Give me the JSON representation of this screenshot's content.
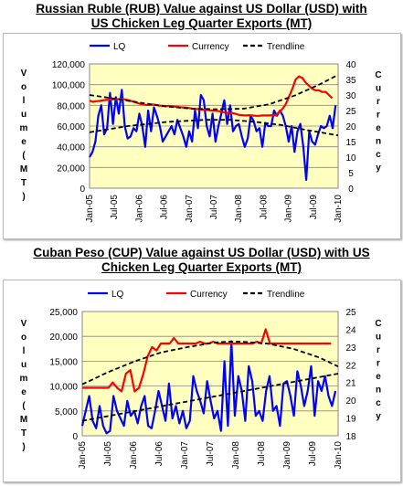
{
  "chart_data": [
    {
      "type": "line",
      "title_line1": "Russian Ruble (RUB) Value against US Dollar (USD) with",
      "title_line2": "US Chicken Leg Quarter Exports (MT)",
      "ylabel": "Volume (MT)",
      "y2label": "Currency",
      "ylim": [
        0,
        120000
      ],
      "y2lim": [
        0,
        40
      ],
      "yticks": [
        "0",
        "20,000",
        "40,000",
        "60,000",
        "80,000",
        "100,000",
        "120,000"
      ],
      "y2ticks": [
        "0",
        "5",
        "10",
        "15",
        "20",
        "25",
        "30",
        "35",
        "40"
      ],
      "xticks": [
        "Jan-05",
        "Jul-05",
        "Jan-06",
        "Jul-06",
        "Jan-07",
        "Jul-07",
        "Jan-08",
        "Jul-08",
        "Jan-09",
        "Jul-09",
        "Jan-10"
      ],
      "legend": [
        "LQ",
        "Currency",
        "Trendline"
      ],
      "colors": {
        "lq": "#0000ff",
        "currency": "#ff0000",
        "trend": "#000000",
        "plot_bg": "#ffffc0"
      },
      "series": [
        {
          "name": "LQ",
          "axis": "left",
          "values": [
            30000,
            35000,
            45000,
            70000,
            80000,
            52000,
            58000,
            92000,
            62000,
            88000,
            72000,
            95000,
            60000,
            48000,
            50000,
            58000,
            55000,
            72000,
            60000,
            40000,
            75000,
            55000,
            78000,
            70000,
            60000,
            45000,
            50000,
            55000,
            60000,
            52000,
            66000,
            58000,
            50000,
            40000,
            55000,
            45000,
            75000,
            58000,
            90000,
            85000,
            60000,
            50000,
            72000,
            45000,
            60000,
            72000,
            85000,
            62000,
            80000,
            55000,
            60000,
            62000,
            50000,
            40000,
            48000,
            70000,
            65000,
            55000,
            58000,
            40000,
            63000,
            60000,
            60000,
            75000,
            70000,
            75000,
            70000,
            60000,
            45000,
            60000,
            35000,
            55000,
            62000,
            40000,
            8000,
            55000,
            45000,
            42000,
            52000,
            60000,
            58000,
            60000,
            70000,
            58000,
            80000
          ]
        },
        {
          "name": "Currency",
          "axis": "right",
          "values": [
            28.2,
            27.8,
            28.0,
            28.1,
            28.3,
            28.4,
            28.5,
            28.6,
            28.6,
            28.7,
            28.7,
            28.5,
            28.2,
            27.9,
            27.6,
            27.2,
            27.0,
            26.8,
            26.8,
            26.9,
            26.8,
            26.6,
            26.5,
            26.4,
            26.5,
            26.3,
            26.2,
            26.1,
            26.0,
            25.9,
            25.8,
            25.6,
            25.5,
            25.4,
            25.3,
            25.2,
            25.1,
            25.0,
            24.9,
            24.8,
            24.5,
            24.3,
            24.2,
            24.2,
            23.9,
            23.6,
            23.5,
            23.4,
            23.5,
            23.4,
            23.3,
            23.3,
            23.4,
            23.4,
            23.4,
            23.5,
            23.5,
            24.5,
            25.5,
            27.0,
            29.5,
            32.0,
            35.0,
            36.0,
            35.5,
            34.0,
            33.0,
            32.0,
            31.5,
            31.5,
            31.0,
            31.0,
            30.0,
            29.0
          ]
        },
        {
          "name": "Trendline",
          "axis": "right",
          "points": [
            [
              0,
              30
            ],
            [
              10,
              28.8
            ],
            [
              20,
              27.5
            ],
            [
              30,
              26.3
            ],
            [
              40,
              25.6
            ],
            [
              50,
              25.4
            ],
            [
              60,
              25.6
            ],
            [
              70,
              27.0
            ],
            [
              80,
              29.8
            ],
            [
              90,
              33.5
            ],
            [
              97,
              36.5
            ]
          ]
        },
        {
          "name": "Trendline",
          "axis": "left",
          "points": [
            [
              0,
              54000
            ],
            [
              15,
              60000
            ],
            [
              30,
              64000
            ],
            [
              45,
              66000
            ],
            [
              55,
              66000
            ],
            [
              65,
              64000
            ],
            [
              75,
              61000
            ],
            [
              85,
              56000
            ],
            [
              97,
              51000
            ]
          ]
        }
      ]
    },
    {
      "type": "line",
      "title_line1": "Cuban Peso (CUP) Value against US Dollar (USD) with US",
      "title_line2": "Chicken Leg Quarter Exports (MT)",
      "ylabel": "Volume (MT)",
      "y2label": "Currency",
      "ylim": [
        0,
        25000
      ],
      "y2lim": [
        18,
        25
      ],
      "yticks": [
        "0",
        "5,000",
        "10,000",
        "15,000",
        "20,000",
        "25,000"
      ],
      "y2ticks": [
        "18",
        "19",
        "20",
        "21",
        "22",
        "23",
        "24",
        "25"
      ],
      "xticks": [
        "Jan-05",
        "Jul-05",
        "Jan-06",
        "Jul-06",
        "Jan-07",
        "Jul-07",
        "Jan-08",
        "Jul-08",
        "Jan-09",
        "Jul-09",
        "Jan-10"
      ],
      "legend": [
        "LQ",
        "Currency",
        "Trendline"
      ],
      "colors": {
        "lq": "#0000ff",
        "currency": "#ff0000",
        "trend": "#000000",
        "plot_bg": "#ffffc0"
      },
      "series": [
        {
          "name": "LQ",
          "axis": "left",
          "values": [
            2000,
            5000,
            8000,
            3000,
            1500,
            6000,
            2000,
            500,
            1000,
            8000,
            5000,
            3500,
            2000,
            7000,
            4000,
            5000,
            2500,
            6000,
            8000,
            2000,
            1500,
            5000,
            9000,
            6000,
            3000,
            10500,
            3500,
            6000,
            2500,
            5000,
            1500,
            3000,
            12000,
            9000,
            7000,
            4500,
            11000,
            7000,
            3500,
            5000,
            1000,
            15000,
            2000,
            19000,
            4000,
            12000,
            9000,
            3000,
            14000,
            11000,
            4000,
            5000,
            3000,
            9000,
            12000,
            5000,
            6000,
            2000,
            10500,
            11000,
            8000,
            4000,
            13000,
            10000,
            6000,
            9000,
            14000,
            4000,
            11000,
            9000,
            12000,
            8000,
            6000,
            9000
          ]
        },
        {
          "name": "Currency",
          "axis": "right",
          "values": [
            20.7,
            20.7,
            20.7,
            20.7,
            20.7,
            20.7,
            20.7,
            21.0,
            20.7,
            20.5,
            21.5,
            21.7,
            20.5,
            20.7,
            21.5,
            22.5,
            23.0,
            22.8,
            23.2,
            23.2,
            23.2,
            23.5,
            23.2,
            23.2,
            23.2,
            23.2,
            23.2,
            23.3,
            23.2,
            23.2,
            23.3,
            23.2,
            23.2,
            23.2,
            23.2,
            23.2,
            23.2,
            23.2,
            23.2,
            23.2,
            23.3,
            23.2,
            24.0,
            23.2,
            23.2,
            23.2,
            23.2,
            23.2,
            23.2,
            23.2,
            23.2,
            23.2,
            23.2,
            23.2,
            23.2,
            23.2,
            23.2,
            23.2
          ]
        },
        {
          "name": "Trendline",
          "axis": "right",
          "points": [
            [
              0,
              20.9
            ],
            [
              10,
              21.6
            ],
            [
              20,
              22.2
            ],
            [
              30,
              22.7
            ],
            [
              40,
              23.0
            ],
            [
              50,
              23.25
            ],
            [
              55,
              23.3
            ],
            [
              60,
              23.3
            ],
            [
              70,
              23.2
            ],
            [
              80,
              22.9
            ],
            [
              90,
              22.4
            ],
            [
              97,
              21.9
            ]
          ]
        },
        {
          "name": "Trendline",
          "axis": "left",
          "points": [
            [
              0,
              3000
            ],
            [
              97,
              12500
            ]
          ]
        }
      ]
    }
  ]
}
